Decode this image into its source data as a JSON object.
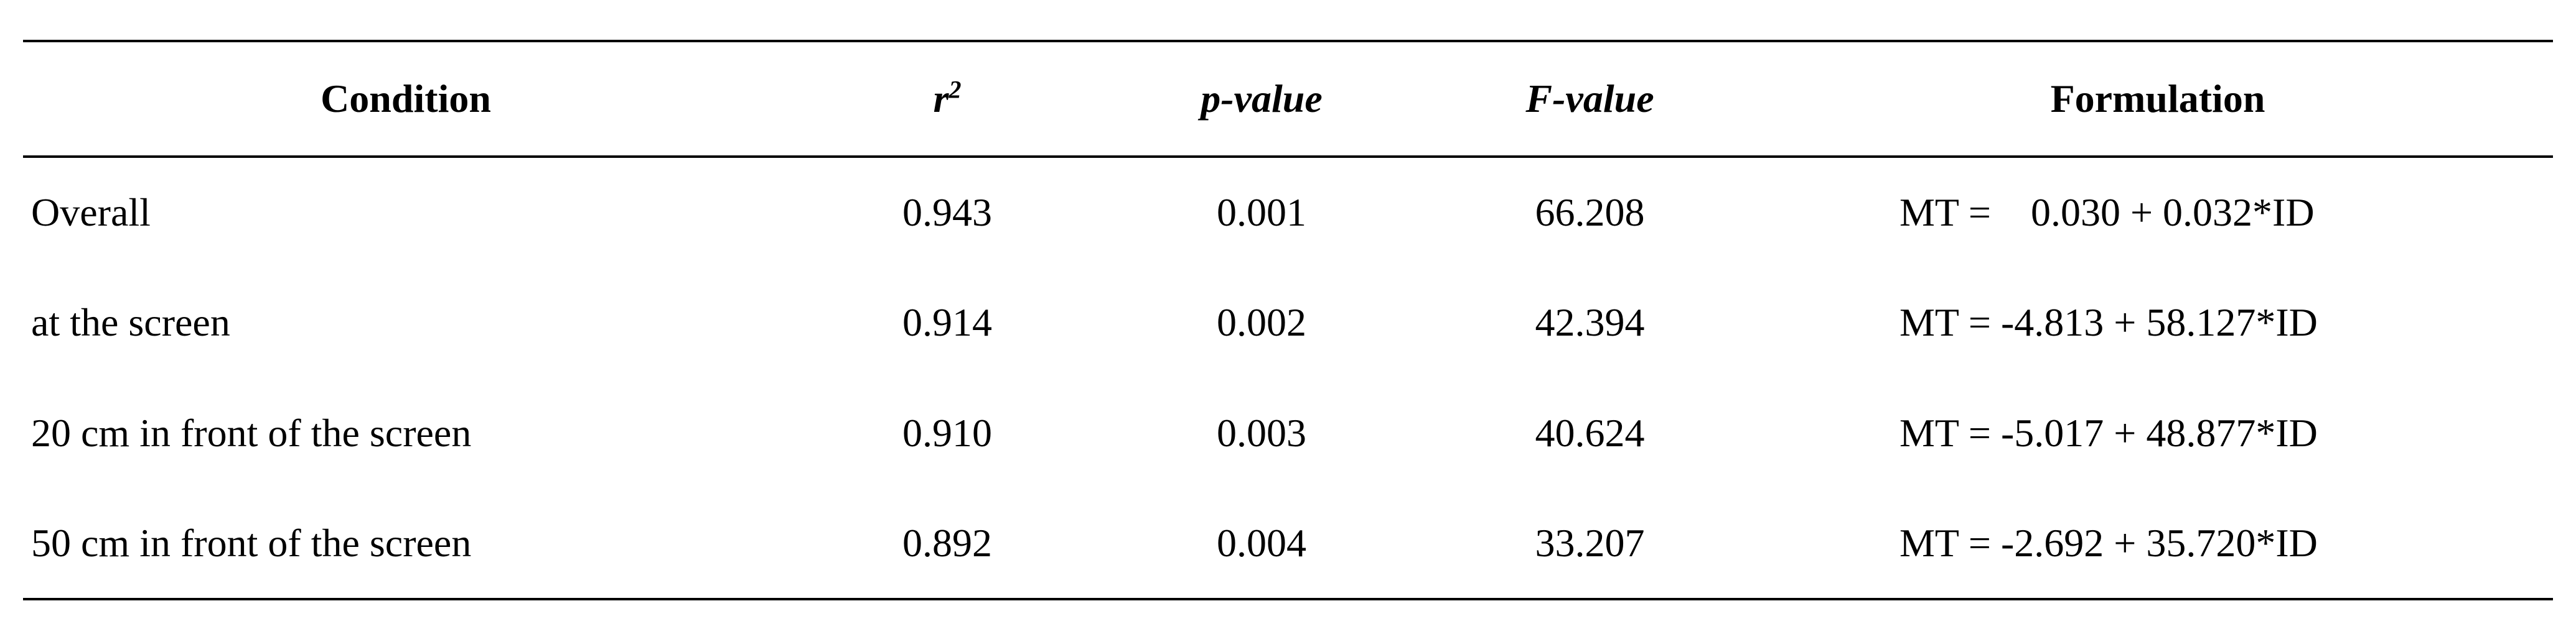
{
  "table": {
    "headers": {
      "condition": "Condition",
      "r2_base": "r",
      "r2_sup": "2",
      "p_value": "p-value",
      "f_value": "F-value",
      "formulation": "Formulation"
    },
    "rows": [
      {
        "condition": "Overall",
        "r2": "0.943",
        "p": "0.001",
        "f": "66.208",
        "formulation": "MT =    0.030 + 0.032*ID"
      },
      {
        "condition": "at the screen",
        "r2": "0.914",
        "p": "0.002",
        "f": "42.394",
        "formulation": "MT = -4.813 + 58.127*ID"
      },
      {
        "condition": "20 cm in front of the screen",
        "r2": "0.910",
        "p": "0.003",
        "f": "40.624",
        "formulation": "MT = -5.017 + 48.877*ID"
      },
      {
        "condition": "50 cm in front of the screen",
        "r2": "0.892",
        "p": "0.004",
        "f": "33.207",
        "formulation": "MT = -2.692 + 35.720*ID"
      }
    ]
  }
}
